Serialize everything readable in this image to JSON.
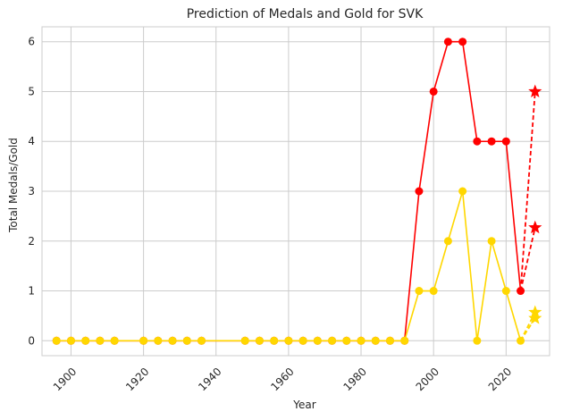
{
  "chart_data": {
    "type": "line",
    "title": "Prediction of Medals and Gold for SVK",
    "xlabel": "Year",
    "ylabel": "Total Medals/Gold",
    "xlim": [
      1892,
      2032
    ],
    "ylim": [
      -0.3,
      6.3
    ],
    "xticks": [
      1900,
      1920,
      1940,
      1960,
      1980,
      2000,
      2020
    ],
    "yticks": [
      0,
      1,
      2,
      3,
      4,
      5,
      6
    ],
    "grid": true,
    "colors": {
      "total": "#ff0000",
      "gold": "#ffd700",
      "grid": "#cccccc",
      "axes": "#cccccc"
    },
    "x": [
      1896,
      1900,
      1904,
      1908,
      1912,
      1920,
      1924,
      1928,
      1932,
      1936,
      1948,
      1952,
      1956,
      1960,
      1964,
      1968,
      1972,
      1976,
      1980,
      1984,
      1988,
      1992,
      1996,
      2000,
      2004,
      2008,
      2012,
      2016,
      2020,
      2024
    ],
    "series": [
      {
        "key": "total",
        "values": [
          0,
          0,
          0,
          0,
          0,
          0,
          0,
          0,
          0,
          0,
          0,
          0,
          0,
          0,
          0,
          0,
          0,
          0,
          0,
          0,
          0,
          0,
          3,
          5,
          6,
          6,
          4,
          4,
          4,
          1
        ]
      },
      {
        "key": "gold",
        "values": [
          0,
          0,
          0,
          0,
          0,
          0,
          0,
          0,
          0,
          0,
          0,
          0,
          0,
          0,
          0,
          0,
          0,
          0,
          0,
          0,
          0,
          0,
          1,
          1,
          2,
          3,
          0,
          2,
          1,
          0
        ]
      }
    ],
    "predictions": [
      {
        "key": "total",
        "from": [
          2024,
          1
        ],
        "points": [
          [
            2028,
            5.0
          ],
          [
            2028,
            2.27
          ]
        ]
      },
      {
        "key": "gold",
        "from": [
          2024,
          0
        ],
        "points": [
          [
            2028,
            0.57
          ],
          [
            2028,
            0.45
          ]
        ]
      }
    ]
  }
}
